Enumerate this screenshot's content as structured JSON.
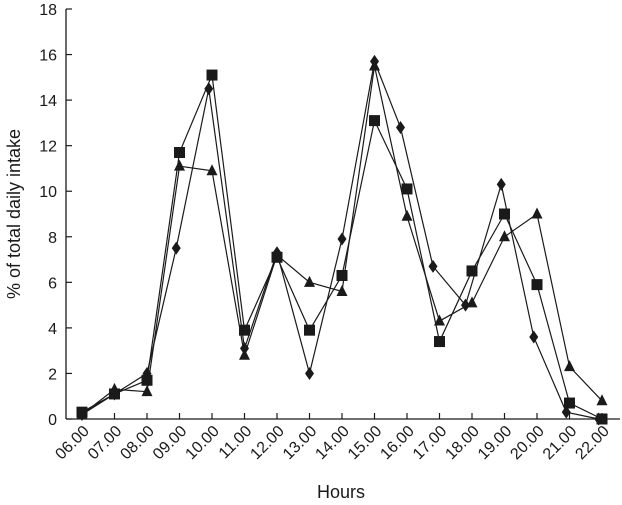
{
  "chart_data": {
    "type": "line",
    "xlabel": "Hours",
    "ylabel": "% of total daily intake",
    "x": [
      "06.00",
      "07.00",
      "08.00",
      "09.00",
      "10.00",
      "11.00",
      "12.00",
      "13.00",
      "14.00",
      "15.00",
      "16.00",
      "17.00",
      "18.00",
      "19.00",
      "20.00",
      "21.00",
      "22.00"
    ],
    "ylim": [
      0,
      18
    ],
    "yticks": [
      0,
      2,
      4,
      6,
      8,
      10,
      12,
      14,
      16,
      18
    ],
    "grid": false,
    "colors": {
      "line": "#1a1a1a",
      "marker": "#1a1a1a"
    },
    "series": [
      {
        "marker": "diamond",
        "points": [
          [
            0,
            0.2
          ],
          [
            1,
            1.1
          ],
          [
            2,
            2.0
          ],
          [
            2.9,
            7.5
          ],
          [
            3.9,
            14.5
          ],
          [
            5,
            3.1
          ],
          [
            6,
            7.3
          ],
          [
            7,
            2.0
          ],
          [
            8,
            7.9
          ],
          [
            9,
            15.7
          ],
          [
            9.8,
            12.8
          ],
          [
            10.8,
            6.7
          ],
          [
            11.8,
            5.0
          ],
          [
            12.9,
            10.3
          ],
          [
            13.9,
            3.6
          ],
          [
            14.9,
            0.3
          ],
          [
            15.9,
            0.0
          ]
        ]
      },
      {
        "marker": "square",
        "points": [
          [
            0,
            0.3
          ],
          [
            1,
            1.1
          ],
          [
            2,
            1.7
          ],
          [
            3,
            11.7
          ],
          [
            4,
            15.1
          ],
          [
            5,
            3.9
          ],
          [
            6,
            7.1
          ],
          [
            7,
            3.9
          ],
          [
            8,
            6.3
          ],
          [
            9,
            13.1
          ],
          [
            10,
            10.1
          ],
          [
            11,
            3.4
          ],
          [
            12,
            6.5
          ],
          [
            13,
            9.0
          ],
          [
            14,
            5.9
          ],
          [
            15,
            0.7
          ],
          [
            16,
            0.0
          ]
        ]
      },
      {
        "marker": "triangle",
        "points": [
          [
            0,
            0.2
          ],
          [
            1,
            1.3
          ],
          [
            2,
            1.2
          ],
          [
            3,
            11.1
          ],
          [
            4,
            10.9
          ],
          [
            5,
            2.8
          ],
          [
            6,
            7.2
          ],
          [
            7,
            6.0
          ],
          [
            8,
            5.6
          ],
          [
            9,
            15.5
          ],
          [
            10,
            8.9
          ],
          [
            11,
            4.3
          ],
          [
            12,
            5.1
          ],
          [
            13,
            8.0
          ],
          [
            14,
            9.0
          ],
          [
            15,
            2.3
          ],
          [
            16,
            0.8
          ]
        ]
      }
    ]
  }
}
